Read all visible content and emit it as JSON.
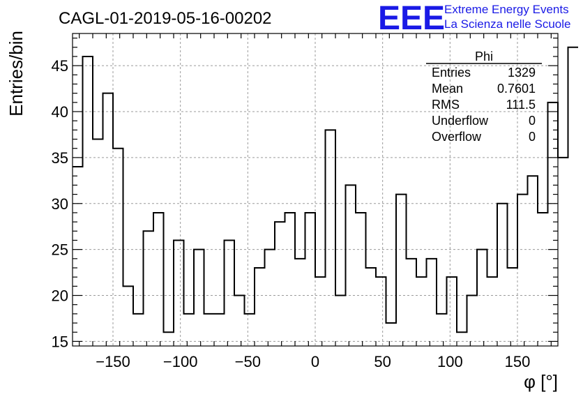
{
  "chart_data": {
    "type": "bar",
    "title": "CAGL-01-2019-05-16-00202",
    "xlabel": "φ [°]",
    "ylabel": "Entries/bin",
    "xlim": [
      -180,
      180
    ],
    "ylim": [
      14.5,
      48.5
    ],
    "bin_width": 7.5,
    "x_ticks": [
      -150,
      -100,
      -50,
      0,
      50,
      100,
      150
    ],
    "x_tick_labels": [
      "−150",
      "−100",
      "−50",
      "0",
      "50",
      "100",
      "150"
    ],
    "y_ticks": [
      15,
      20,
      25,
      30,
      35,
      40,
      45
    ],
    "y_tick_labels": [
      "15",
      "20",
      "25",
      "30",
      "35",
      "40",
      "45"
    ],
    "grid": true,
    "values": [
      34,
      46,
      37,
      42,
      36,
      21,
      18,
      27,
      29,
      16,
      26,
      18,
      25,
      18,
      18,
      26,
      20,
      18,
      23,
      25,
      28,
      29,
      24,
      29,
      22,
      38,
      20,
      32,
      29,
      23,
      22,
      17,
      31,
      24,
      22,
      24,
      18,
      22,
      16,
      20,
      25,
      22,
      30,
      23,
      31,
      33,
      29,
      41,
      35,
      47
    ],
    "stats": {
      "name": "Phi",
      "rows": [
        {
          "label": "Entries",
          "value": "1329"
        },
        {
          "label": "Mean",
          "value": "0.7601"
        },
        {
          "label": "RMS",
          "value": "111.5"
        },
        {
          "label": "Underflow",
          "value": "0"
        },
        {
          "label": "Overflow",
          "value": "0"
        }
      ]
    }
  },
  "logo": {
    "text": "EEE",
    "line1": "Extreme Energy Events",
    "line2": "La Scienza nelle Scuole"
  }
}
